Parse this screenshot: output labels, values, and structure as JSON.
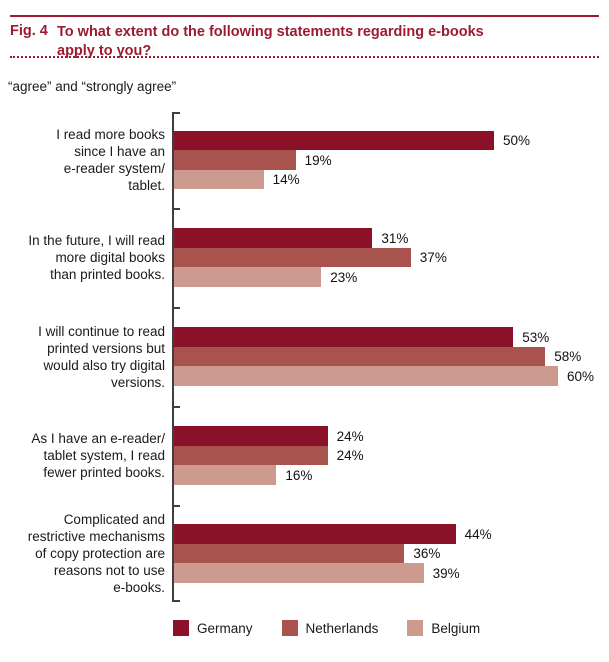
{
  "header": {
    "fig_label": "Fig. 4",
    "title_lines": [
      "To what extent do the following statements regarding e-books",
      "apply to you?"
    ]
  },
  "subtitle": "“agree” and “strongly agree”",
  "colors": {
    "accent": "#9C1B31",
    "axis": "#3F3F3F",
    "germany": "#8A1127",
    "netherlands": "#A9534E",
    "belgium": "#CC9A8F"
  },
  "chart_data": {
    "type": "bar",
    "orientation": "horizontal",
    "title": "Fig. 4  To what extent do the following statements regarding e-books apply to you?",
    "subtitle": "“agree” and “strongly agree”",
    "value_suffix": "%",
    "xlim": [
      0,
      68
    ],
    "grid": false,
    "legend_position": "bottom",
    "categories": [
      "I read more books since I have an e-reader system/ tablet.",
      "In the future, I will read more digital books than printed books.",
      "I will continue to read printed versions but would also try digital versions.",
      "As I have an e-reader/ tablet system, I read fewer printed books.",
      "Complicated and restrictive mechanisms of copy protection are reasons not to use e-books."
    ],
    "category_lines": [
      [
        "I read more books",
        "since I have an",
        "e-reader system/",
        "tablet."
      ],
      [
        "In the future, I will read",
        "more digital books",
        "than printed books."
      ],
      [
        "I will continue to read",
        "printed versions but",
        "would also try digital",
        "versions."
      ],
      [
        "As I have an e-reader/",
        "tablet system, I read",
        "fewer printed books."
      ],
      [
        "Complicated and",
        "restrictive mechanisms",
        "of copy protection are",
        "reasons not to use",
        "e-books."
      ]
    ],
    "series": [
      {
        "name": "Germany",
        "color": "#8A1127",
        "values": [
          50,
          31,
          53,
          24,
          44
        ]
      },
      {
        "name": "Netherlands",
        "color": "#A9534E",
        "values": [
          19,
          37,
          58,
          24,
          36
        ]
      },
      {
        "name": "Belgium",
        "color": "#CC9A8F",
        "values": [
          14,
          23,
          60,
          16,
          39
        ]
      }
    ]
  },
  "legend": [
    {
      "label": "Germany"
    },
    {
      "label": "Netherlands"
    },
    {
      "label": "Belgium"
    }
  ]
}
